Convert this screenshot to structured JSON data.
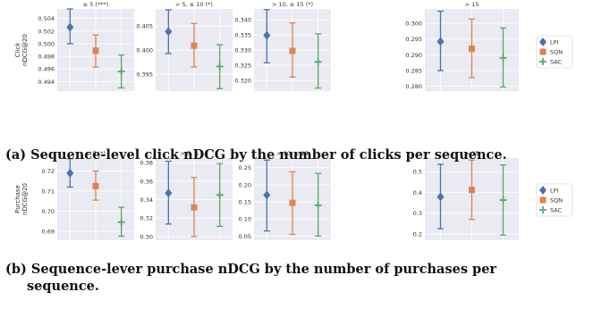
{
  "captions": {
    "a": "(a) Sequence-level click nDCG by the number of clicks per sequence.",
    "b_line1": "(b) Sequence-lever purchase nDCG by the number of purchases per",
    "b_line2": "sequence."
  },
  "colors": {
    "LPI": "#4c72b0",
    "SQN": "#dd8452",
    "SAC": "#55a868",
    "panel_bg": "#eaeaf2",
    "grid": "#ffffff"
  },
  "chart_data": [
    {
      "type": "errorbar",
      "group": "a",
      "ylabel": "Click\nnDCG@20",
      "title": "≤ 5 (***)",
      "categories": [
        "LPI",
        "SQN",
        "SAC"
      ],
      "ylim": [
        0.4925,
        0.5055
      ],
      "yticks": [
        0.494,
        0.496,
        0.498,
        0.5,
        0.502,
        0.504
      ],
      "series": [
        {
          "name": "LPI",
          "marker": "diamond",
          "y": 0.5026,
          "err": [
            0.5,
            0.5055
          ]
        },
        {
          "name": "SQN",
          "marker": "square",
          "y": 0.4989,
          "err": [
            0.4963,
            0.5014
          ]
        },
        {
          "name": "SAC",
          "marker": "plus",
          "y": 0.4956,
          "err": [
            0.493,
            0.4982
          ]
        }
      ]
    },
    {
      "type": "errorbar",
      "group": "a",
      "title": "> 5, ≤ 10 (*)",
      "categories": [
        "LPI",
        "SQN",
        "SAC"
      ],
      "ylim": [
        0.3915,
        0.4085
      ],
      "yticks": [
        0.395,
        0.4,
        0.405
      ],
      "series": [
        {
          "name": "LPI",
          "marker": "diamond",
          "y": 0.4038,
          "err": [
            0.3993,
            0.4083
          ]
        },
        {
          "name": "SQN",
          "marker": "square",
          "y": 0.4009,
          "err": [
            0.3965,
            0.4055
          ]
        },
        {
          "name": "SAC",
          "marker": "plus",
          "y": 0.3966,
          "err": [
            0.392,
            0.4011
          ]
        }
      ]
    },
    {
      "type": "errorbar",
      "group": "a",
      "title": "> 10, ≤ 15 (*)",
      "categories": [
        "LPI",
        "SQN",
        "SAC"
      ],
      "ylim": [
        0.3165,
        0.3435
      ],
      "yticks": [
        0.32,
        0.325,
        0.33,
        0.335,
        0.34
      ],
      "series": [
        {
          "name": "LPI",
          "marker": "diamond",
          "y": 0.3348,
          "err": [
            0.3258,
            0.3433
          ]
        },
        {
          "name": "SQN",
          "marker": "square",
          "y": 0.3297,
          "err": [
            0.3211,
            0.3389
          ]
        },
        {
          "name": "SAC",
          "marker": "plus",
          "y": 0.3261,
          "err": [
            0.3175,
            0.3353
          ]
        }
      ]
    },
    {
      "type": "errorbar",
      "group": "a",
      "title": "> 15",
      "categories": [
        "LPI",
        "SQN",
        "SAC"
      ],
      "ylim": [
        0.2785,
        0.3045
      ],
      "yticks": [
        0.28,
        0.285,
        0.29,
        0.295,
        0.3
      ],
      "series": [
        {
          "name": "LPI",
          "marker": "diamond",
          "y": 0.2942,
          "err": [
            0.285,
            0.3038
          ]
        },
        {
          "name": "SQN",
          "marker": "square",
          "y": 0.2919,
          "err": [
            0.2827,
            0.3013
          ]
        },
        {
          "name": "SAC",
          "marker": "plus",
          "y": 0.289,
          "err": [
            0.2798,
            0.2985
          ]
        }
      ]
    },
    {
      "type": "errorbar",
      "group": "b",
      "ylabel": "Purchase\nnDCG@20",
      "title": "≤ 5 (*)",
      "categories": [
        "LPI",
        "SQN",
        "SAC"
      ],
      "ylim": [
        0.6855,
        0.7265
      ],
      "yticks": [
        0.69,
        0.7,
        0.71,
        0.72
      ],
      "series": [
        {
          "name": "LPI",
          "marker": "diamond",
          "y": 0.719,
          "err": [
            0.712,
            0.7262
          ]
        },
        {
          "name": "SQN",
          "marker": "square",
          "y": 0.7125,
          "err": [
            0.7055,
            0.72
          ]
        },
        {
          "name": "SAC",
          "marker": "plus",
          "y": 0.6945,
          "err": [
            0.6875,
            0.702
          ]
        }
      ]
    },
    {
      "type": "errorbar",
      "group": "b",
      "title": "> 5, ≤ 10",
      "categories": [
        "LPI",
        "SQN",
        "SAC"
      ],
      "ylim": [
        0.296,
        0.385
      ],
      "yticks": [
        0.3,
        0.32,
        0.34,
        0.36,
        0.38
      ],
      "series": [
        {
          "name": "LPI",
          "marker": "diamond",
          "y": 0.347,
          "err": [
            0.3135,
            0.3815
          ]
        },
        {
          "name": "SQN",
          "marker": "square",
          "y": 0.3315,
          "err": [
            0.3,
            0.364
          ]
        },
        {
          "name": "SAC",
          "marker": "plus",
          "y": 0.345,
          "err": [
            0.311,
            0.379
          ]
        }
      ]
    },
    {
      "type": "errorbar",
      "group": "b",
      "title": "> 10, ≤ 15",
      "categories": [
        "LPI",
        "SQN",
        "SAC"
      ],
      "ylim": [
        0.038,
        0.278
      ],
      "yticks": [
        0.05,
        0.1,
        0.15,
        0.2,
        0.25
      ],
      "series": [
        {
          "name": "LPI",
          "marker": "diamond",
          "y": 0.17,
          "err": [
            0.065,
            0.272
          ]
        },
        {
          "name": "SQN",
          "marker": "square",
          "y": 0.147,
          "err": [
            0.055,
            0.238
          ]
        },
        {
          "name": "SAC",
          "marker": "plus",
          "y": 0.14,
          "err": [
            0.05,
            0.233
          ]
        }
      ]
    },
    {
      "type": "errorbar",
      "group": "b",
      "title": "> 15",
      "categories": [
        "LPI",
        "SQN",
        "SAC"
      ],
      "ylim": [
        0.17,
        0.565
      ],
      "yticks": [
        0.2,
        0.3,
        0.4,
        0.5
      ],
      "series": [
        {
          "name": "LPI",
          "marker": "diamond",
          "y": 0.378,
          "err": [
            0.225,
            0.535
          ]
        },
        {
          "name": "SQN",
          "marker": "square",
          "y": 0.412,
          "err": [
            0.27,
            0.555
          ]
        },
        {
          "name": "SAC",
          "marker": "plus",
          "y": 0.363,
          "err": [
            0.195,
            0.532
          ]
        }
      ]
    }
  ],
  "legend": {
    "placement": "right",
    "entries": [
      {
        "name": "LPI",
        "marker": "diamond"
      },
      {
        "name": "SQN",
        "marker": "square"
      },
      {
        "name": "SAC",
        "marker": "plus"
      }
    ]
  }
}
